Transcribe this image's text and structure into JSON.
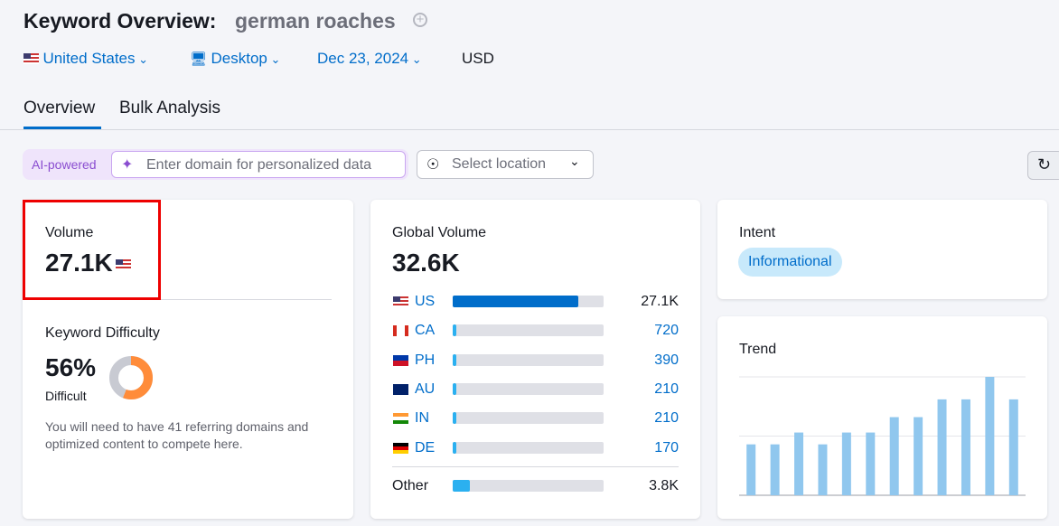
{
  "header": {
    "title": "Keyword Overview:",
    "keyword": "german roaches",
    "country": "United States",
    "device": "Desktop",
    "date": "Dec 23, 2024",
    "currency": "USD"
  },
  "tabs": [
    "Overview",
    "Bulk Analysis"
  ],
  "toolbar": {
    "badge": "AI-powered",
    "domain_placeholder": "Enter domain for personalized data",
    "location_placeholder": "Select location"
  },
  "volume": {
    "label": "Volume",
    "value": "27.1K"
  },
  "keyword_difficulty": {
    "label": "Keyword Difficulty",
    "value": 56,
    "value_label": "56%",
    "level": "Difficult",
    "note": "You will need to have 41 referring domains and optimized content to compete here."
  },
  "global_volume": {
    "label": "Global Volume",
    "value": 32600,
    "value_label": "32.6K",
    "countries": [
      {
        "code": "US",
        "value": 27100,
        "value_label": "27.1K"
      },
      {
        "code": "CA",
        "value": 720,
        "value_label": "720"
      },
      {
        "code": "PH",
        "value": 390,
        "value_label": "390"
      },
      {
        "code": "AU",
        "value": 210,
        "value_label": "210"
      },
      {
        "code": "IN",
        "value": 210,
        "value_label": "210"
      },
      {
        "code": "DE",
        "value": 170,
        "value_label": "170"
      }
    ],
    "other": {
      "label": "Other",
      "value": 3800,
      "value_label": "3.8K"
    }
  },
  "intent": {
    "label": "Intent",
    "value": "Informational"
  },
  "trend": {
    "label": "Trend",
    "values": [
      0.43,
      0.43,
      0.53,
      0.43,
      0.53,
      0.53,
      0.66,
      0.66,
      0.81,
      0.81,
      1,
      0.81
    ],
    "ylim": [
      0,
      1
    ],
    "yticks": [
      0,
      0.5,
      1
    ]
  }
}
